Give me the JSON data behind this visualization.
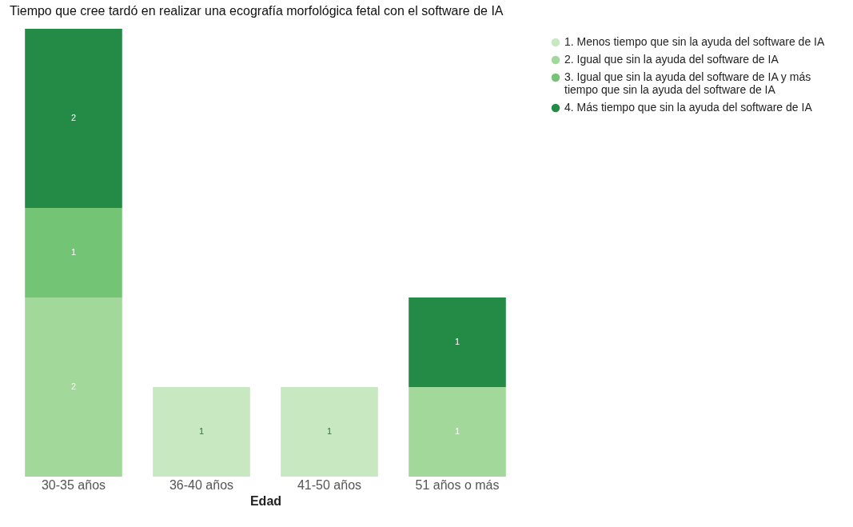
{
  "chart_data": {
    "type": "bar",
    "title": "Tiempo que cree tardó en realizar una ecografía morfológica fetal con el software de IA",
    "xlabel": "Edad",
    "categories": [
      "30-35 años",
      "36-40 años",
      "41-50 años",
      "51 años o más"
    ],
    "stacked": true,
    "data_labels": true,
    "tick_labels": "x",
    "legend": "top right",
    "series": [
      {
        "name": "1. Menos tiempo que sin la ayuda del software de IA",
        "color": "#c7e8c0",
        "values": [
          null,
          1,
          1,
          null
        ]
      },
      {
        "name": "2. Igual que sin la ayuda del software de IA",
        "color": "#a2d89a",
        "values": [
          2,
          null,
          null,
          1
        ]
      },
      {
        "name": "3. Igual que sin la ayuda del software de IA y más tiempo que sin la ayuda del software de IA",
        "color": "#74c476",
        "values": [
          1,
          null,
          null,
          null
        ]
      },
      {
        "name": "4. Más tiempo que sin la ayuda del software de IA",
        "color": "#238b45",
        "values": [
          2,
          null,
          null,
          1
        ]
      }
    ]
  }
}
